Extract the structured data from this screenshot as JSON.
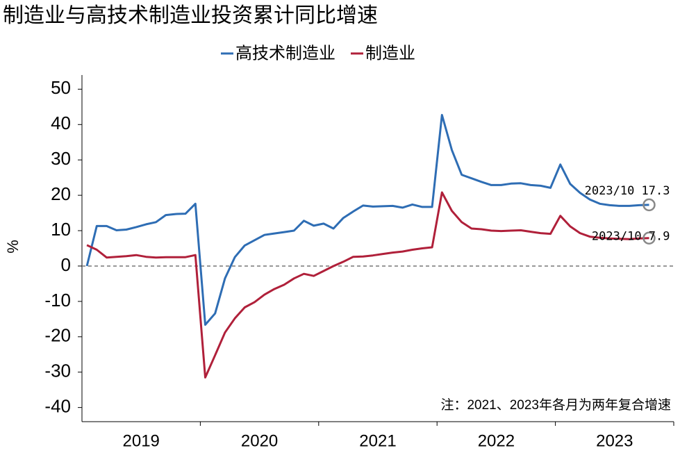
{
  "chart_data": {
    "type": "line",
    "title": "制造业与高技术制造业投资累计同比增速",
    "y_label": "%",
    "x_axis_labels": [
      "2019",
      "2020",
      "2021",
      "2022",
      "2023"
    ],
    "series": [
      {
        "name": "高技术制造业",
        "color": "#2e6db4",
        "values": [
          0,
          11.3,
          11.3,
          10.1,
          10.3,
          11.0,
          11.8,
          12.4,
          14.4,
          14.7,
          14.8,
          17.6,
          -16.6,
          -13.4,
          -3.5,
          2.5,
          5.8,
          7.3,
          8.8,
          9.2,
          9.6,
          10.0,
          12.8,
          11.4,
          12.0,
          10.6,
          13.6,
          15.4,
          17.1,
          16.8,
          16.9,
          17.0,
          16.5,
          17.4,
          16.7,
          16.7,
          42.7,
          32.8,
          25.8,
          24.8,
          23.8,
          22.9,
          22.9,
          23.3,
          23.4,
          22.9,
          22.7,
          22.1,
          28.7,
          23.2,
          20.7,
          18.8,
          17.6,
          17.2,
          17.0,
          17.0,
          17.2,
          17.3
        ]
      },
      {
        "name": "制造业",
        "color": "#b0203a",
        "values": [
          5.9,
          4.6,
          2.4,
          2.6,
          2.8,
          3.1,
          2.6,
          2.4,
          2.5,
          2.5,
          2.5,
          3.1,
          -31.5,
          -25.2,
          -18.8,
          -14.8,
          -11.7,
          -10.2,
          -8.1,
          -6.5,
          -5.3,
          -3.5,
          -2.2,
          -2.8,
          -1.4,
          0,
          1.2,
          2.6,
          2.7,
          3.0,
          3.4,
          3.8,
          4.1,
          4.6,
          5.0,
          5.3,
          20.8,
          15.6,
          12.4,
          10.6,
          10.4,
          10.0,
          9.9,
          10.0,
          10.1,
          9.7,
          9.3,
          9.1,
          14.2,
          11.2,
          9.3,
          8.3,
          8.0,
          7.8,
          7.7,
          7.6,
          7.8,
          7.9
        ]
      }
    ],
    "annotations": [
      "2023/10 17.3",
      "2023/10 7.9"
    ],
    "note": "注：2021、2023年各月为两年复合增速",
    "ylim": [
      -44,
      54
    ],
    "yticks": [
      -40,
      -30,
      -20,
      -10,
      0,
      10,
      20,
      30,
      40,
      50
    ],
    "zero_line": true,
    "legend": "top"
  }
}
